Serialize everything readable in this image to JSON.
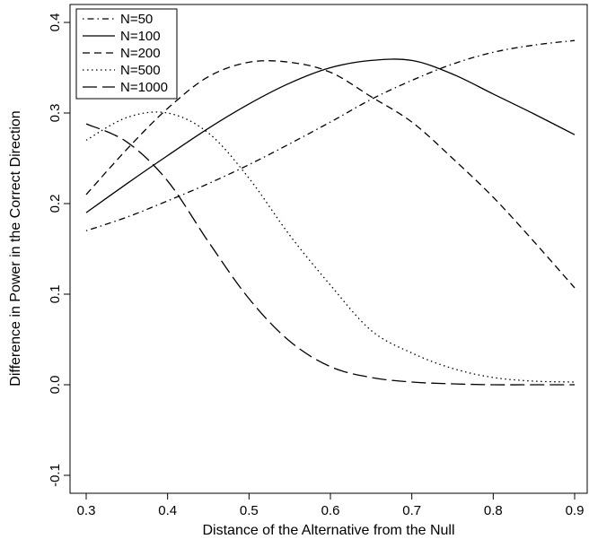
{
  "chart_data": {
    "type": "line",
    "title": "",
    "xlabel": "Distance of the Alternative from the Null",
    "ylabel": "Difference in Power in the Correct Direction",
    "xlim": [
      0.3,
      0.9
    ],
    "ylim": [
      -0.1,
      0.4
    ],
    "xticks": [
      "0.3",
      "0.4",
      "0.5",
      "0.6",
      "0.7",
      "0.8",
      "0.9"
    ],
    "yticks": [
      "-0.1",
      "0.0",
      "0.1",
      "0.2",
      "0.3",
      "0.4"
    ],
    "grid": false,
    "legend_position": "top-left",
    "x": [
      0.3,
      0.35,
      0.4,
      0.45,
      0.5,
      0.55,
      0.6,
      0.65,
      0.7,
      0.75,
      0.8,
      0.85,
      0.9
    ],
    "series": [
      {
        "name": "N=50",
        "dash": "dashdot",
        "values": [
          0.17,
          0.185,
          0.203,
          0.222,
          0.243,
          0.266,
          0.29,
          0.315,
          0.336,
          0.354,
          0.367,
          0.375,
          0.38
        ]
      },
      {
        "name": "N=100",
        "dash": "solid",
        "values": [
          0.19,
          0.222,
          0.253,
          0.283,
          0.31,
          0.333,
          0.35,
          0.358,
          0.358,
          0.343,
          0.321,
          0.299,
          0.276
        ]
      },
      {
        "name": "N=200",
        "dash": "dashed",
        "values": [
          0.21,
          0.26,
          0.305,
          0.34,
          0.356,
          0.356,
          0.345,
          0.318,
          0.29,
          0.25,
          0.207,
          0.158,
          0.107
        ]
      },
      {
        "name": "N=500",
        "dash": "dotted",
        "values": [
          0.27,
          0.295,
          0.3,
          0.278,
          0.228,
          0.165,
          0.11,
          0.06,
          0.035,
          0.018,
          0.008,
          0.004,
          0.003
        ]
      },
      {
        "name": "N=1000",
        "dash": "longdash",
        "values": [
          0.288,
          0.268,
          0.225,
          0.158,
          0.095,
          0.048,
          0.02,
          0.008,
          0.003,
          0.001,
          0.0,
          0.0,
          0.0
        ]
      }
    ]
  }
}
